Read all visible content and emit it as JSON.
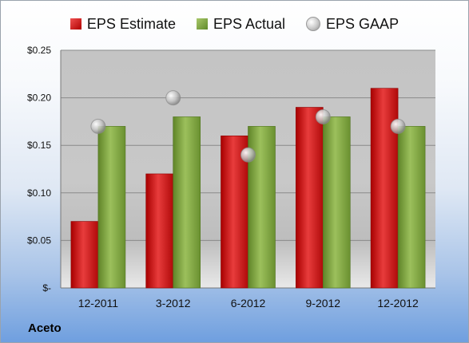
{
  "chart_data": {
    "type": "bar",
    "title": "",
    "categories": [
      "12-2011",
      "3-2012",
      "6-2012",
      "9-2012",
      "12-2012"
    ],
    "series": [
      {
        "name": "EPS Estimate",
        "kind": "bar",
        "color": "#c8141c",
        "values": [
          0.07,
          0.12,
          0.16,
          0.19,
          0.21
        ]
      },
      {
        "name": "EPS Actual",
        "kind": "bar",
        "color": "#7ea23f",
        "values": [
          0.17,
          0.18,
          0.17,
          0.18,
          0.17
        ]
      },
      {
        "name": "EPS GAAP",
        "kind": "marker",
        "color": "#b8b8b8",
        "values": [
          0.17,
          0.2,
          0.14,
          0.18,
          0.17
        ]
      }
    ],
    "ylim": [
      0,
      0.25
    ],
    "yticks": [
      0,
      0.05,
      0.1,
      0.15,
      0.2,
      0.25
    ],
    "ytick_labels": [
      "$-",
      "$0.05",
      "$0.10",
      "$0.15",
      "$0.20",
      "$0.25"
    ],
    "grid": true,
    "legend_position": "top"
  },
  "legend": {
    "estimate": "EPS Estimate",
    "actual": "EPS Actual",
    "gaap": "EPS GAAP"
  },
  "company": "Aceto"
}
